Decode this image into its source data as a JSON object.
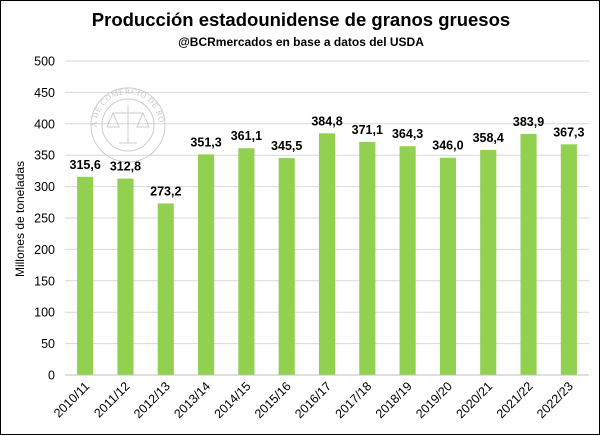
{
  "chart_data": {
    "type": "bar",
    "title": "Producción estadounidense de granos gruesos",
    "subtitle": "@BCRmercados en base a datos del USDA",
    "ylabel": "Millones de toneladas",
    "xlabel": "",
    "ylim": [
      0,
      500
    ],
    "yticks": [
      0,
      50,
      100,
      150,
      200,
      250,
      300,
      350,
      400,
      450,
      500
    ],
    "grid": true,
    "categories": [
      "2010/11",
      "2011/12",
      "2012/13",
      "2013/14",
      "2014/15",
      "2015/16",
      "2016/17",
      "2017/18",
      "2018/19",
      "2019/20",
      "2020/21",
      "2021/22",
      "2022/23"
    ],
    "values": [
      315.6,
      312.8,
      273.2,
      351.3,
      361.1,
      345.5,
      384.8,
      371.1,
      364.3,
      346.0,
      358.4,
      383.9,
      367.3
    ],
    "data_labels": [
      "315,6",
      "312,8",
      "273,2",
      "351,3",
      "361,1",
      "345,5",
      "384,8",
      "371,1",
      "364,3",
      "346,0",
      "358,4",
      "383,9",
      "367,3"
    ],
    "bar_color": "#92d050"
  },
  "watermark": {
    "text": "BOLSA DE COMERCIO DE ROSARIO"
  }
}
